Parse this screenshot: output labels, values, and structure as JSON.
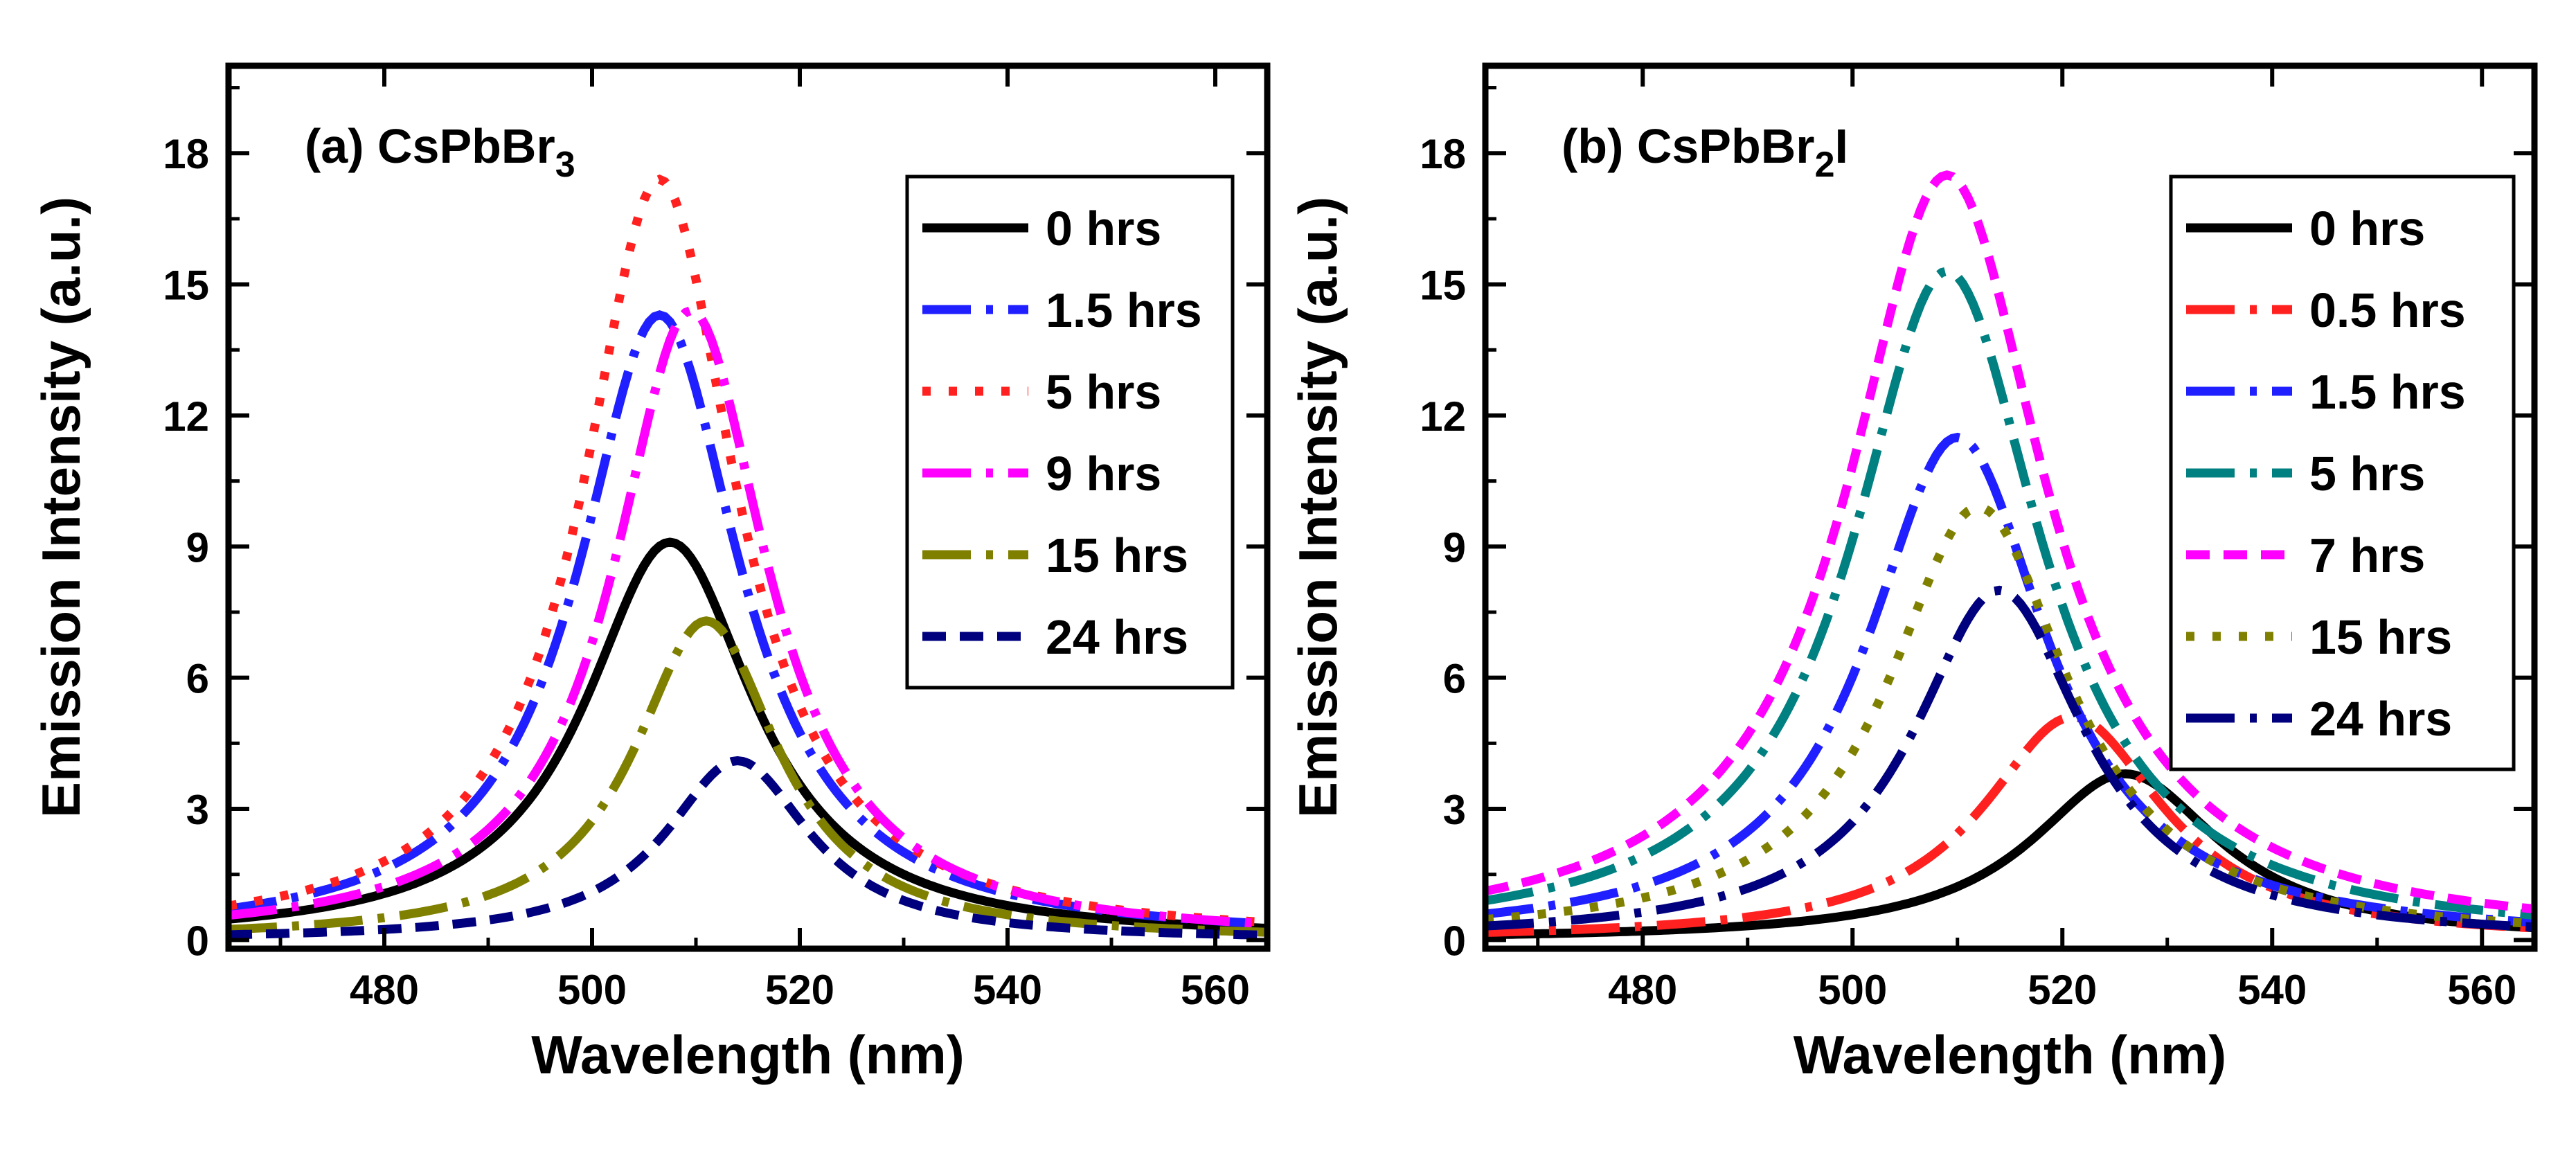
{
  "chart_data": [
    {
      "type": "line",
      "label": "(a)",
      "compound": "CsPbBr",
      "subscript": "3",
      "suffix": "",
      "xlabel": "Wavelength (nm)",
      "ylabel": "Emission Intensity (a.u.)",
      "xlim": [
        465,
        565
      ],
      "ylim": [
        -0.2,
        20
      ],
      "xticks": [
        480,
        500,
        520,
        540,
        560
      ],
      "yticks": [
        0,
        3,
        6,
        9,
        12,
        15,
        18
      ],
      "legend_position": "top-right",
      "series": [
        {
          "name": "0 hrs",
          "color": "#000000",
          "dash": "solid",
          "peak": 507.5,
          "amp": 9.1,
          "fwhm": 20
        },
        {
          "name": "1.5 hrs",
          "color": "#1f1fff",
          "dash": "dashdot",
          "peak": 506.5,
          "amp": 14.3,
          "fwhm": 19
        },
        {
          "name": "5 hrs",
          "color": "#ff2020",
          "dash": "dot",
          "peak": 506.5,
          "amp": 17.4,
          "fwhm": 18
        },
        {
          "name": "9 hrs",
          "color": "#ff00ff",
          "dash": "dashdot",
          "peak": 509.5,
          "amp": 14.4,
          "fwhm": 18
        },
        {
          "name": "15 hrs",
          "color": "#808000",
          "dash": "dashdot",
          "peak": 511,
          "amp": 7.3,
          "fwhm": 17
        },
        {
          "name": "24 hrs",
          "color": "#00007f",
          "dash": "shortdash",
          "peak": 514,
          "amp": 4.1,
          "fwhm": 17
        }
      ]
    },
    {
      "type": "line",
      "label": "(b)",
      "compound": "CsPbBr",
      "subscript": "2",
      "suffix": "I",
      "xlabel": "Wavelength (nm)",
      "ylabel": "Emission Intensity (a.u.)",
      "xlim": [
        465,
        565
      ],
      "ylim": [
        -0.2,
        20
      ],
      "xticks": [
        480,
        500,
        520,
        540,
        560
      ],
      "yticks": [
        0,
        3,
        6,
        9,
        12,
        15,
        18
      ],
      "legend_position": "top-right",
      "series": [
        {
          "name": "0 hrs",
          "color": "#000000",
          "dash": "solid",
          "peak": 526,
          "amp": 3.8,
          "fwhm": 22
        },
        {
          "name": "0.5 hrs",
          "color": "#ff2020",
          "dash": "dashdot",
          "peak": 521,
          "amp": 5.1,
          "fwhm": 21
        },
        {
          "name": "1.5 hrs",
          "color": "#1f1fff",
          "dash": "dashdot",
          "peak": 510,
          "amp": 11.5,
          "fwhm": 21
        },
        {
          "name": "5 hrs",
          "color": "#008080",
          "dash": "dashdot",
          "peak": 509,
          "amp": 15.3,
          "fwhm": 22
        },
        {
          "name": "7 hrs",
          "color": "#ff00ff",
          "dash": "shortdash",
          "peak": 509,
          "amp": 17.5,
          "fwhm": 23
        },
        {
          "name": "15 hrs",
          "color": "#808000",
          "dash": "dot",
          "peak": 512,
          "amp": 9.9,
          "fwhm": 21
        },
        {
          "name": "24 hrs",
          "color": "#00007f",
          "dash": "dashdot",
          "peak": 514,
          "amp": 8.0,
          "fwhm": 20
        }
      ]
    }
  ]
}
